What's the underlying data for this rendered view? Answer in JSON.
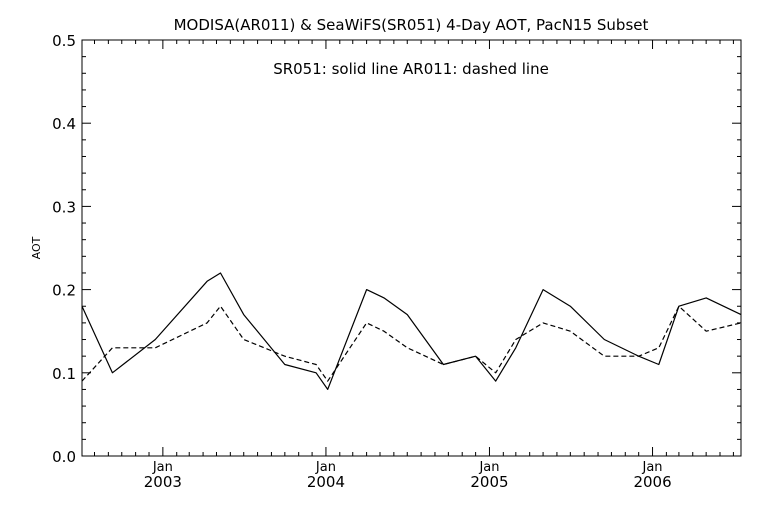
{
  "chart_data": {
    "type": "line",
    "title": "MODISA(AR011) & SeaWiFS(SR051) 4-Day AOT, PacN15 Subset",
    "annotation": "SR051: solid line   AR011: dashed line",
    "xlabel": "",
    "ylabel": "AOT",
    "xlim": [
      "2002-07-04",
      "2006-07-18"
    ],
    "ylim": [
      0.0,
      0.5
    ],
    "grid": false,
    "legend": "none",
    "yticks": [
      "0.0",
      "0.1",
      "0.2",
      "0.3",
      "0.4",
      "0.5"
    ],
    "xticks": [
      {
        "month": "Jan",
        "year": "2003",
        "date": "2003-01-01"
      },
      {
        "month": "Jan",
        "year": "2004",
        "date": "2004-01-01"
      },
      {
        "month": "Jan",
        "year": "2005",
        "date": "2005-01-01"
      },
      {
        "month": "Jan",
        "year": "2006",
        "date": "2006-01-01"
      }
    ],
    "series": [
      {
        "name": "SR051",
        "style": "solid",
        "x": [
          "2002-07-04",
          "2002-09-10",
          "2002-12-15",
          "2003-04-10",
          "2003-05-10",
          "2003-07-01",
          "2003-10-01",
          "2003-12-10",
          "2004-01-05",
          "2004-04-01",
          "2004-05-10",
          "2004-07-01",
          "2004-09-20",
          "2004-12-01",
          "2005-01-15",
          "2005-03-01",
          "2005-05-01",
          "2005-07-01",
          "2005-09-15",
          "2005-12-01",
          "2006-01-15",
          "2006-03-01",
          "2006-05-01",
          "2006-07-18"
        ],
        "values": [
          0.18,
          0.1,
          0.14,
          0.21,
          0.22,
          0.17,
          0.11,
          0.1,
          0.08,
          0.2,
          0.19,
          0.17,
          0.11,
          0.12,
          0.09,
          0.13,
          0.2,
          0.18,
          0.14,
          0.12,
          0.11,
          0.18,
          0.19,
          0.17
        ]
      },
      {
        "name": "AR011",
        "style": "dashed",
        "x": [
          "2002-07-04",
          "2002-09-10",
          "2002-12-15",
          "2003-04-10",
          "2003-05-10",
          "2003-07-01",
          "2003-10-01",
          "2003-12-10",
          "2004-01-05",
          "2004-04-01",
          "2004-05-10",
          "2004-07-01",
          "2004-09-20",
          "2004-12-01",
          "2005-01-15",
          "2005-03-01",
          "2005-05-01",
          "2005-07-01",
          "2005-09-15",
          "2005-12-01",
          "2006-01-15",
          "2006-03-01",
          "2006-05-01",
          "2006-07-18"
        ],
        "values": [
          0.09,
          0.13,
          0.13,
          0.16,
          0.18,
          0.14,
          0.12,
          0.11,
          0.09,
          0.16,
          0.15,
          0.13,
          0.11,
          0.12,
          0.1,
          0.14,
          0.16,
          0.15,
          0.12,
          0.12,
          0.13,
          0.18,
          0.15,
          0.16
        ]
      }
    ]
  }
}
